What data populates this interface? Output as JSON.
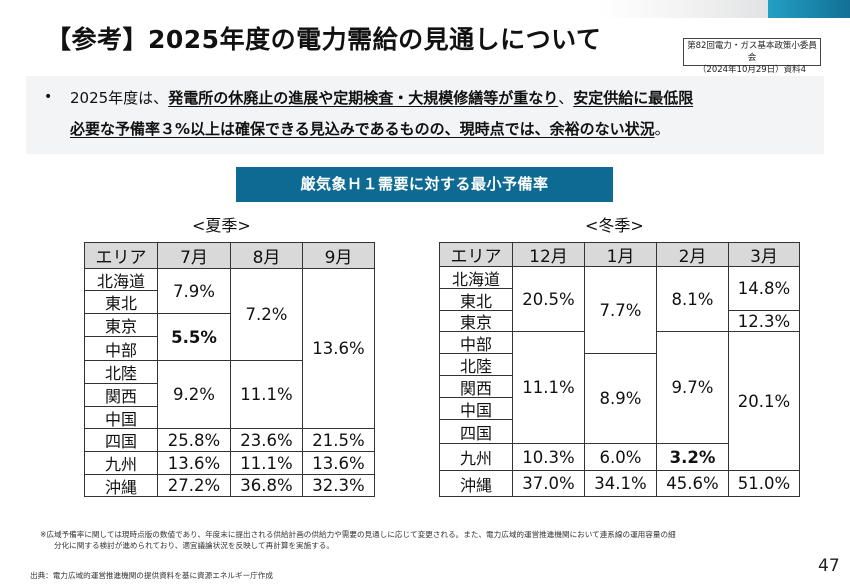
{
  "header": {
    "title": "【参考】2025年度の電力需給の見通しについて",
    "source_box": {
      "line1": "第82回電力・ガス基本政策小委員会",
      "line2": "（2024年10月29日）資料4"
    }
  },
  "summary": {
    "bullet": "•",
    "line1": [
      {
        "text": "2025年度は、",
        "emph": false
      },
      {
        "text": "発電所の休廃止の進展や定期検査・大規模修繕等が重なり",
        "emph": true
      },
      {
        "text": "、",
        "emph": false
      },
      {
        "text": "安定供給に最低限",
        "emph": true
      }
    ],
    "line2": [
      {
        "text": "必要な予備率３%以上は確保できる見込みであるものの、現時点では、余裕のない状況",
        "emph": true
      },
      {
        "text": "。",
        "emph": false
      }
    ]
  },
  "banner": "厳気象Ｈ１需要に対する最小予備率",
  "summer": {
    "label": "<夏季>",
    "columns": [
      "エリア",
      "7月",
      "8月",
      "9月"
    ],
    "areas": [
      "北海道",
      "東北",
      "東京",
      "中部",
      "北陸",
      "関西",
      "中国",
      "四国",
      "九州",
      "沖縄"
    ],
    "values": [
      {
        "col": 1,
        "rows": [
          0,
          1
        ],
        "value": "7.9%",
        "bold": false
      },
      {
        "col": 1,
        "rows": [
          2,
          3
        ],
        "value": "5.5%",
        "bold": true
      },
      {
        "col": 1,
        "rows": [
          4,
          6
        ],
        "value": "9.2%",
        "bold": false
      },
      {
        "col": 1,
        "rows": [
          7,
          7
        ],
        "value": "25.8%",
        "bold": false
      },
      {
        "col": 1,
        "rows": [
          8,
          8
        ],
        "value": "13.6%",
        "bold": false
      },
      {
        "col": 1,
        "rows": [
          9,
          9
        ],
        "value": "27.2%",
        "bold": false
      },
      {
        "col": 2,
        "rows": [
          0,
          3
        ],
        "value": "7.2%",
        "bold": false
      },
      {
        "col": 2,
        "rows": [
          4,
          6
        ],
        "value": "11.1%",
        "bold": false
      },
      {
        "col": 2,
        "rows": [
          7,
          7
        ],
        "value": "23.6%",
        "bold": false
      },
      {
        "col": 2,
        "rows": [
          8,
          8
        ],
        "value": "11.1%",
        "bold": false
      },
      {
        "col": 2,
        "rows": [
          9,
          9
        ],
        "value": "36.8%",
        "bold": false
      },
      {
        "col": 3,
        "rows": [
          0,
          6
        ],
        "value": "13.6%",
        "bold": false
      },
      {
        "col": 3,
        "rows": [
          7,
          7
        ],
        "value": "21.5%",
        "bold": false
      },
      {
        "col": 3,
        "rows": [
          8,
          8
        ],
        "value": "13.6%",
        "bold": false
      },
      {
        "col": 3,
        "rows": [
          9,
          9
        ],
        "value": "32.3%",
        "bold": false
      }
    ]
  },
  "winter": {
    "label": "<冬季>",
    "columns": [
      "エリア",
      "12月",
      "1月",
      "2月",
      "3月"
    ],
    "areas": [
      "北海道",
      "東北",
      "東京",
      "中部",
      "北陸",
      "関西",
      "中国",
      "四国",
      "九州",
      "沖縄"
    ],
    "values": [
      {
        "col": 1,
        "rows": [
          0,
          2
        ],
        "value": "20.5%",
        "bold": false
      },
      {
        "col": 1,
        "rows": [
          3,
          7
        ],
        "value": "11.1%",
        "bold": false
      },
      {
        "col": 1,
        "rows": [
          8,
          8
        ],
        "value": "10.3%",
        "bold": false
      },
      {
        "col": 1,
        "rows": [
          9,
          9
        ],
        "value": "37.0%",
        "bold": false
      },
      {
        "col": 2,
        "rows": [
          0,
          3
        ],
        "value": "7.7%",
        "bold": false
      },
      {
        "col": 2,
        "rows": [
          4,
          7
        ],
        "value": "8.9%",
        "bold": false
      },
      {
        "col": 2,
        "rows": [
          8,
          8
        ],
        "value": "6.0%",
        "bold": false
      },
      {
        "col": 2,
        "rows": [
          9,
          9
        ],
        "value": "34.1%",
        "bold": false
      },
      {
        "col": 3,
        "rows": [
          0,
          2
        ],
        "value": "8.1%",
        "bold": false
      },
      {
        "col": 3,
        "rows": [
          3,
          7
        ],
        "value": "9.7%",
        "bold": false
      },
      {
        "col": 3,
        "rows": [
          8,
          8
        ],
        "value": "3.2%",
        "bold": true
      },
      {
        "col": 3,
        "rows": [
          9,
          9
        ],
        "value": "45.6%",
        "bold": false
      },
      {
        "col": 4,
        "rows": [
          0,
          1
        ],
        "value": "14.8%",
        "bold": false
      },
      {
        "col": 4,
        "rows": [
          2,
          2
        ],
        "value": "12.3%",
        "bold": false
      },
      {
        "col": 4,
        "rows": [
          3,
          8
        ],
        "value": "20.1%",
        "bold": false
      },
      {
        "col": 4,
        "rows": [
          9,
          9
        ],
        "value": "51.0%",
        "bold": false
      }
    ]
  },
  "footnote": {
    "line1": "※広域予備率に関しては現時点版の数値であり、年度末に提出される供給計画の供給力や需要の見通しに応じて変更される。また、電力広域的運営推進機関において連系線の運用容量の細",
    "line2": "分化に関する検討が進められており、適宜議論状況を反映して再計算を実施する。"
  },
  "credit": "出典：電力広域的運営推進機関の提供資料を基に資源エネルギー庁作成",
  "page_number": "47",
  "colors": {
    "banner": "#0d6a92",
    "header_cell": "#d9d9d9",
    "summary_bg": "#f2f4f6"
  }
}
